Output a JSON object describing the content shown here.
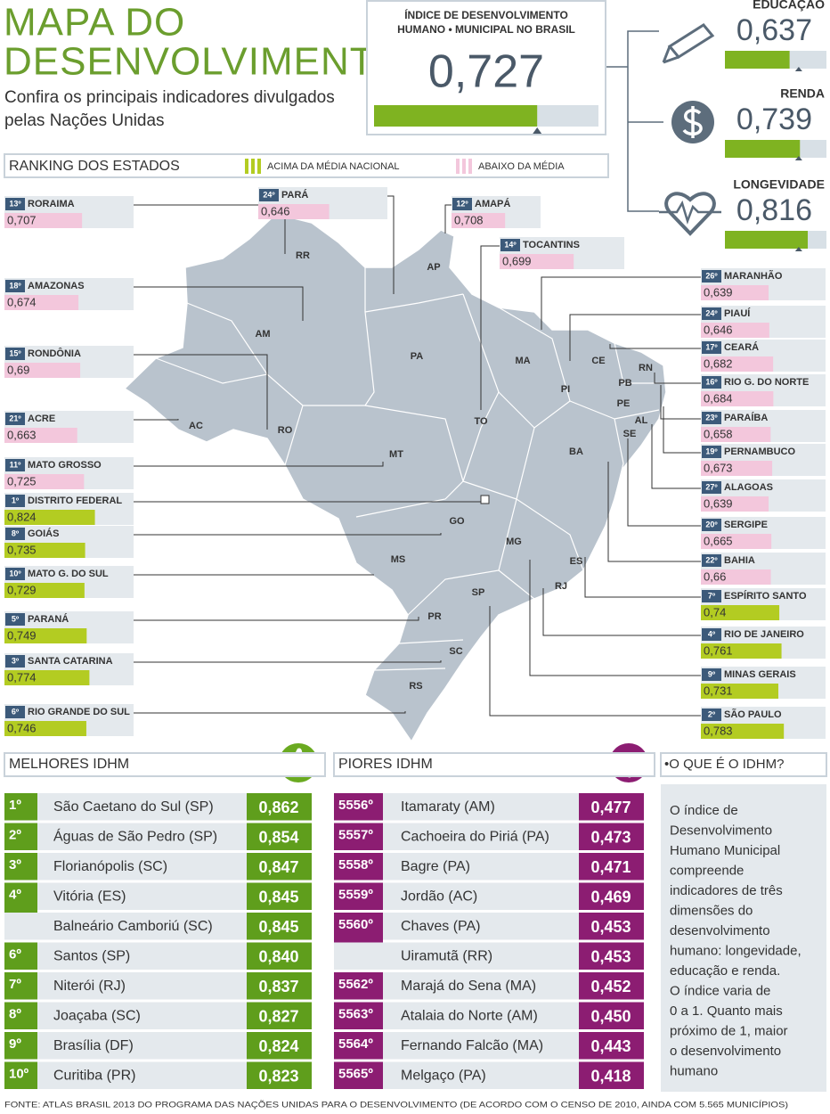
{
  "header": {
    "title_lines": [
      "MAPA DO",
      "DESENVOLVIMENTO"
    ],
    "subtitle_lines": [
      "Confira os principais indicadores divulgados",
      "pelas Nações Unidas"
    ]
  },
  "national": {
    "label_lines": [
      "ÍNDICE DE DESENVOLVIMENTO",
      "HUMANO • MUNICIPAL NO BRASIL"
    ],
    "value": 0.727,
    "label": "0,727",
    "color": "#7fb321"
  },
  "components": [
    {
      "name": "EDUCAÇÃO",
      "value": 0.637,
      "label": "0,637"
    },
    {
      "name": "RENDA",
      "value": 0.739,
      "label": "0,739"
    },
    {
      "name": "LONGEVIDADE",
      "value": 0.816,
      "label": "0,816"
    }
  ],
  "ranking": {
    "title": "RANKING DOS ESTADOS",
    "legend": [
      {
        "label": "ACIMA DA MÉDIA NACIONAL",
        "color": "#b3cc22"
      },
      {
        "label": "ABAIXO DA MÉDIA",
        "color": "#f3c7dc"
      }
    ],
    "states": [
      {
        "rank": "13º",
        "name": "RORAIMA",
        "abbr": "RR",
        "value": 0.707,
        "label": "0,707"
      },
      {
        "rank": "24º",
        "name": "PARÁ",
        "abbr": "PA",
        "value": 0.646,
        "label": "0,646"
      },
      {
        "rank": "12º",
        "name": "AMAPÁ",
        "abbr": "AP",
        "value": 0.708,
        "label": "0,708"
      },
      {
        "rank": "14º",
        "name": "TOCANTINS",
        "abbr": "TO",
        "value": 0.699,
        "label": "0,699"
      },
      {
        "rank": "18º",
        "name": "AMAZONAS",
        "abbr": "AM",
        "value": 0.674,
        "label": "0,674"
      },
      {
        "rank": "15º",
        "name": "RONDÔNIA",
        "abbr": "RO",
        "value": 0.69,
        "label": "0,69"
      },
      {
        "rank": "21º",
        "name": "ACRE",
        "abbr": "AC",
        "value": 0.663,
        "label": "0,663"
      },
      {
        "rank": "11º",
        "name": "MATO GROSSO",
        "abbr": "MT",
        "value": 0.725,
        "label": "0,725"
      },
      {
        "rank": "1º",
        "name": "DISTRITO FEDERAL",
        "value": 0.824,
        "label": "0,824"
      },
      {
        "rank": "8º",
        "name": "GOIÁS",
        "abbr": "GO",
        "value": 0.735,
        "label": "0,735"
      },
      {
        "rank": "10º",
        "name": "MATO G. DO SUL",
        "abbr": "MS",
        "value": 0.729,
        "label": "0,729"
      },
      {
        "rank": "5º",
        "name": "PARANÁ",
        "abbr": "PR",
        "value": 0.749,
        "label": "0,749"
      },
      {
        "rank": "3º",
        "name": "SANTA CATARINA",
        "abbr": "SC",
        "value": 0.774,
        "label": "0,774"
      },
      {
        "rank": "6º",
        "name": "RIO GRANDE DO SUL",
        "abbr": "RS",
        "value": 0.746,
        "label": "0,746"
      },
      {
        "rank": "26º",
        "name": "MARANHÃO",
        "abbr": "MA",
        "value": 0.639,
        "label": "0,639"
      },
      {
        "rank": "24º",
        "name": "PIAUÍ",
        "abbr": "PI",
        "value": 0.646,
        "label": "0,646"
      },
      {
        "rank": "17º",
        "name": "CEARÁ",
        "abbr": "CE",
        "value": 0.682,
        "label": "0,682"
      },
      {
        "rank": "16º",
        "name": "RIO G. DO NORTE",
        "abbr": "RN",
        "value": 0.684,
        "label": "0,684"
      },
      {
        "rank": "23º",
        "name": "PARAÍBA",
        "abbr": "PB",
        "value": 0.658,
        "label": "0,658"
      },
      {
        "rank": "19º",
        "name": "PERNAMBUCO",
        "abbr": "PE",
        "value": 0.673,
        "label": "0,673"
      },
      {
        "rank": "27º",
        "name": "ALAGOAS",
        "abbr": "AL",
        "value": 0.639,
        "label": "0,639"
      },
      {
        "rank": "20º",
        "name": "SERGIPE",
        "abbr": "SE",
        "value": 0.665,
        "label": "0,665"
      },
      {
        "rank": "22º",
        "name": "BAHIA",
        "abbr": "BA",
        "value": 0.66,
        "label": "0,66"
      },
      {
        "rank": "7º",
        "name": "ESPÍRITO SANTO",
        "abbr": "ES",
        "value": 0.74,
        "label": "0,74"
      },
      {
        "rank": "4º",
        "name": "RIO DE JANEIRO",
        "abbr": "RJ",
        "value": 0.761,
        "label": "0,761"
      },
      {
        "rank": "9º",
        "name": "MINAS GERAIS",
        "abbr": "MG",
        "value": 0.731,
        "label": "0,731"
      },
      {
        "rank": "2º",
        "name": "SÃO PAULO",
        "abbr": "SP",
        "value": 0.783,
        "label": "0,783"
      }
    ]
  },
  "best": {
    "title": "MELHORES IDHM",
    "color": "#5f9e1c",
    "rows": [
      {
        "rank": "1º",
        "name": "São Caetano do Sul (SP)",
        "value": "0,862"
      },
      {
        "rank": "2º",
        "name": "Águas de São Pedro (SP)",
        "value": "0,854"
      },
      {
        "rank": "3º",
        "name": "Florianópolis (SC)",
        "value": "0,847"
      },
      {
        "rank": "4º",
        "name": "Vitória (ES)",
        "value": "0,845"
      },
      {
        "rank": null,
        "name": "Balneário Camboriú (SC)",
        "value": "0,845"
      },
      {
        "rank": "6º",
        "name": "Santos (SP)",
        "value": "0,840"
      },
      {
        "rank": "7º",
        "name": "Niterói (RJ)",
        "value": "0,837"
      },
      {
        "rank": "8º",
        "name": "Joaçaba (SC)",
        "value": "0,827"
      },
      {
        "rank": "9º",
        "name": "Brasília (DF)",
        "value": "0,824"
      },
      {
        "rank": "10º",
        "name": "Curitiba (PR)",
        "value": "0,823"
      }
    ]
  },
  "worst": {
    "title": "PIORES IDHM",
    "color": "#8c1d72",
    "rows": [
      {
        "rank": "5556º",
        "name": "Itamaraty (AM)",
        "value": "0,477"
      },
      {
        "rank": "5557º",
        "name": "Cachoeira do Piriá (PA)",
        "value": "0,473"
      },
      {
        "rank": "5558º",
        "name": "Bagre (PA)",
        "value": "0,471"
      },
      {
        "rank": "5559º",
        "name": "Jordão (AC)",
        "value": "0,469"
      },
      {
        "rank": "5560º",
        "name": "Chaves (PA)",
        "value": "0,453"
      },
      {
        "rank": null,
        "name": "Uiramutã (RR)",
        "value": "0,453"
      },
      {
        "rank": "5562º",
        "name": "Marajá do Sena (MA)",
        "value": "0,452"
      },
      {
        "rank": "5563º",
        "name": "Atalaia do Norte (AM)",
        "value": "0,450"
      },
      {
        "rank": "5564º",
        "name": "Fernando Falcão (MA)",
        "value": "0,443"
      },
      {
        "rank": "5565º",
        "name": "Melgaço (PA)",
        "value": "0,418"
      }
    ]
  },
  "info": {
    "title": "•O QUE É O IDHM?",
    "lines": [
      "O índice de",
      "Desenvolvimento",
      "Humano Municipal",
      "compreende",
      "indicadores de três",
      "dimensões do",
      "desenvolvimento",
      "humano: longevidade,",
      "educação e renda.",
      "O índice varia de",
      "0 a 1. Quanto mais",
      "próximo de 1, maior",
      "o desenvolvimento",
      "humano"
    ]
  },
  "source": "FONTE: ATLAS BRASIL 2013 DO PROGRAMA DAS NAÇÕES UNIDAS PARA O DESENVOLVIMENTO (DE ACORDO COM O CENSO DE 2010, AINDA COM 5.565 MUNICÍPIOS)"
}
